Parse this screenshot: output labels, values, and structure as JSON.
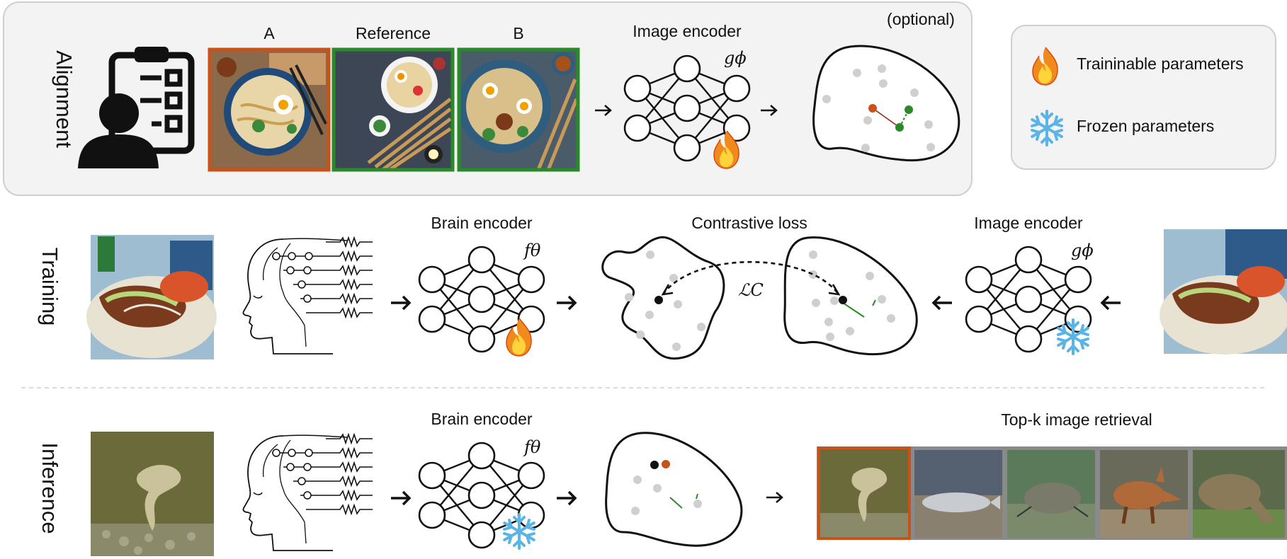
{
  "rows": {
    "alignment": "Alignment",
    "training": "Training",
    "inference": "Inference"
  },
  "alignment": {
    "label_a": "A",
    "label_ref": "Reference",
    "label_b": "B",
    "encoder_title": "Image encoder",
    "encoder_symbol": "gϕ",
    "optional": "(optional)"
  },
  "legend": {
    "trainable": "Traininable parameters",
    "frozen": "Frozen parameters"
  },
  "training": {
    "brain_title": "Brain encoder",
    "brain_symbol": "fθ",
    "loss_title": "Contrastive loss",
    "loss_symbol": "ℒC",
    "image_title": "Image encoder",
    "image_symbol": "gϕ"
  },
  "inference": {
    "brain_title": "Brain encoder",
    "brain_symbol": "fθ",
    "retrieval_title": "Top-k image retrieval"
  },
  "colors": {
    "orange": "#c8531a",
    "green": "#2a8a2a",
    "panel_bg": "#f3f3f3",
    "panel_border": "#cfcfcf",
    "dot_gray": "#cfcfcf",
    "snow": "#5ab4e6"
  },
  "icons": [
    "clipboard-person-icon",
    "fire-icon",
    "snowflake-icon",
    "brain-head-icon",
    "arrow-right-icon",
    "arrow-left-icon"
  ]
}
